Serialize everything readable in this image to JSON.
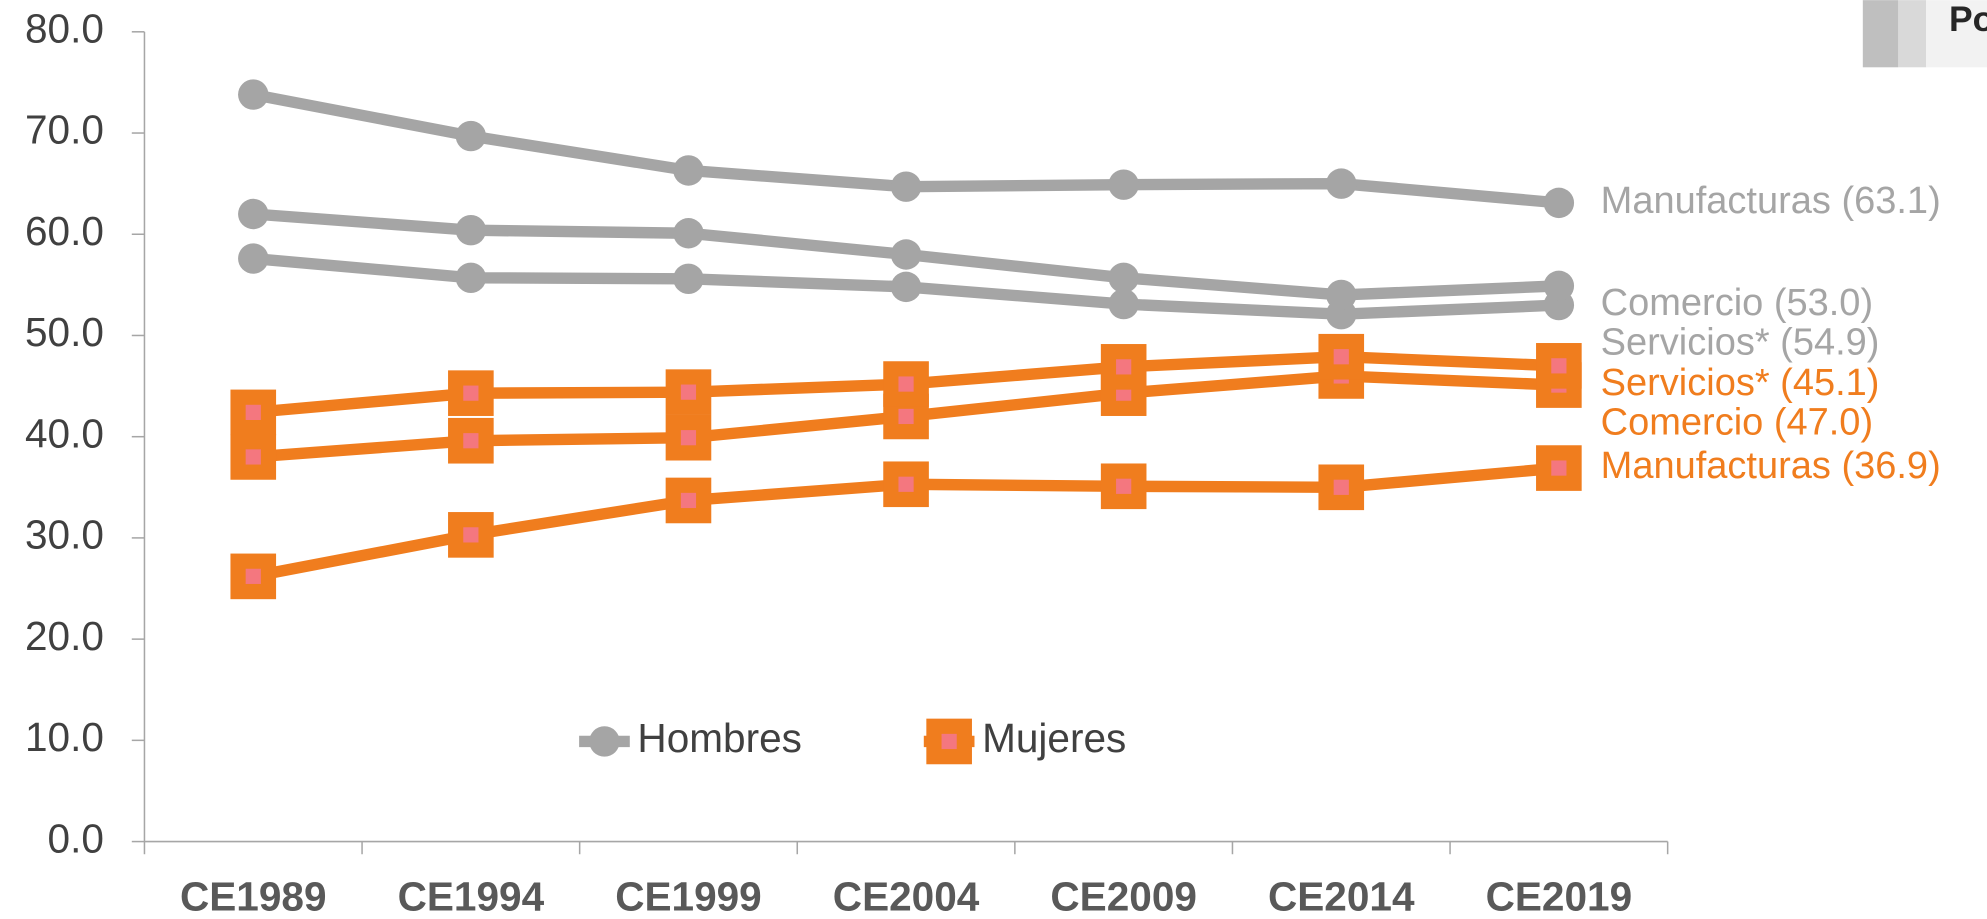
{
  "chart_data": {
    "type": "line",
    "header_box": "Po",
    "categories": [
      "CE1989",
      "CE1994",
      "CE1999",
      "CE2004",
      "CE2009",
      "CE2014",
      "CE2019"
    ],
    "ylim": [
      0,
      80
    ],
    "yticks": [
      {
        "value": 0,
        "label": "0.0"
      },
      {
        "value": 10,
        "label": "10.0"
      },
      {
        "value": 20,
        "label": "20.0"
      },
      {
        "value": 30,
        "label": "30.0"
      },
      {
        "value": 40,
        "label": "40.0"
      },
      {
        "value": 50,
        "label": "50.0"
      },
      {
        "value": 60,
        "label": "60.0"
      },
      {
        "value": 70,
        "label": "70.0"
      },
      {
        "value": 80,
        "label": "80.0"
      }
    ],
    "legend_position": "lower center",
    "groups": [
      {
        "name": "Hombres",
        "color": "#a5a5a5",
        "marker": "circle"
      },
      {
        "name": "Mujeres",
        "color": "#f07d1e",
        "marker": "square"
      }
    ],
    "series": [
      {
        "group": 0,
        "label": "Manufacturas (63.1)",
        "values": [
          73.8,
          69.7,
          66.3,
          64.7,
          64.9,
          65.0,
          63.1
        ]
      },
      {
        "group": 0,
        "label": "Comercio (53.0)",
        "values": [
          57.6,
          55.7,
          55.6,
          54.8,
          53.1,
          52.1,
          53.0
        ]
      },
      {
        "group": 0,
        "label": "Servicios* (54.9)",
        "values": [
          62.0,
          60.4,
          60.1,
          58.0,
          55.7,
          54.0,
          54.9
        ]
      },
      {
        "group": 1,
        "label": "Servicios* (45.1)",
        "values": [
          38.0,
          39.6,
          39.9,
          42.0,
          44.3,
          46.0,
          45.1
        ]
      },
      {
        "group": 1,
        "label": "Comercio (47.0)",
        "values": [
          42.4,
          44.3,
          44.4,
          45.2,
          46.9,
          47.9,
          47.0
        ]
      },
      {
        "group": 1,
        "label": "Manufacturas (36.9)",
        "values": [
          26.2,
          30.3,
          33.7,
          35.3,
          35.1,
          35.0,
          36.9
        ]
      }
    ]
  }
}
